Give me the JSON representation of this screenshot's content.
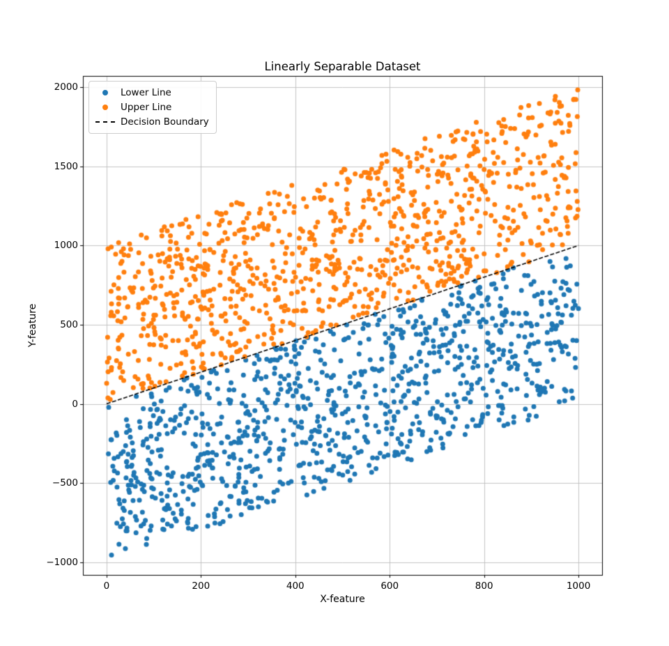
{
  "figure": {
    "background_color": "#ffffff"
  },
  "chart_data": {
    "type": "scatter",
    "title": "Linearly Separable Dataset",
    "xlabel": "X-feature",
    "ylabel": "Y-feature",
    "xlim": [
      -50,
      1050
    ],
    "ylim": [
      -1080,
      2070
    ],
    "x_ticks": [
      0,
      200,
      400,
      600,
      800,
      1000
    ],
    "x_tick_labels": [
      "0",
      "200",
      "400",
      "600",
      "800",
      "1000"
    ],
    "y_ticks": [
      -1000,
      -500,
      0,
      500,
      1000,
      1500,
      2000
    ],
    "y_tick_labels": [
      "−1000",
      "−500",
      "0",
      "500",
      "1000",
      "1500",
      "2000"
    ],
    "grid": true,
    "grid_color": "#c3c3c3",
    "spine_color": "#000000",
    "legend_position": "upper left",
    "series": [
      {
        "name": "Lower Line",
        "kind": "scatter",
        "color": "#1f77b4",
        "marker": "circle",
        "marker_radius": 3.5,
        "n_points": 1000,
        "seed": 101,
        "x_range": [
          0,
          1000
        ],
        "offset_range": [
          -1000,
          0
        ],
        "rule": "y = x + uniform(offset_range): points uniformly fill the band between y = x - 1000 and y = x"
      },
      {
        "name": "Upper Line",
        "kind": "scatter",
        "color": "#ff7f0e",
        "marker": "circle",
        "marker_radius": 3.5,
        "n_points": 1000,
        "seed": 202,
        "x_range": [
          0,
          1000
        ],
        "offset_range": [
          0,
          1000
        ],
        "rule": "y = x + uniform(offset_range): points uniformly fill the band between y = x and y = x + 1000"
      },
      {
        "name": "Decision Boundary",
        "kind": "line",
        "color": "#000000",
        "style": "dashed",
        "line_width": 1.6,
        "dash_pattern": [
          6,
          2.5
        ],
        "points": [
          [
            0,
            0
          ],
          [
            1000,
            1000
          ]
        ]
      }
    ]
  }
}
